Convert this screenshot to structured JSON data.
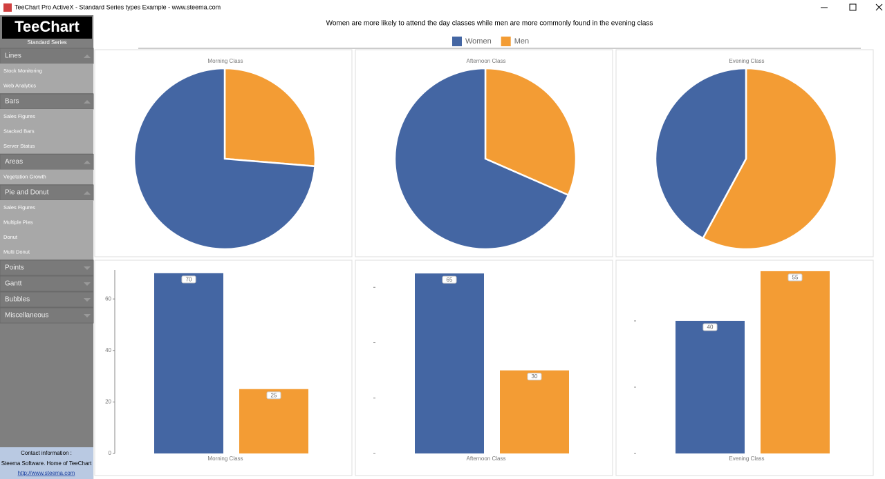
{
  "window": {
    "title": "TeeChart Pro ActiveX - Standard Series types Example - www.steema.com"
  },
  "sidebar": {
    "logo": "TeeChart",
    "subtitle": "Standard Series",
    "sections": [
      {
        "name": "Lines",
        "items": [
          "Stock Monitoring",
          "Web Analytics"
        ]
      },
      {
        "name": "Bars",
        "items": [
          "Sales Figures",
          "Stacked Bars",
          "Server Status"
        ]
      },
      {
        "name": "Areas",
        "items": [
          "Vegetation Growth"
        ]
      },
      {
        "name": "Pie and Donut",
        "items": [
          "Sales Figures",
          "Multiple Pies",
          "Donut",
          "Multi Donut"
        ]
      },
      {
        "name": "Points"
      },
      {
        "name": "Gantt"
      },
      {
        "name": "Bubbles"
      },
      {
        "name": "Miscellaneous"
      }
    ],
    "contact": {
      "heading": "Contact information :",
      "text": "Steema Software. Home of TeeChart",
      "link": "http://www.steema.com"
    }
  },
  "header": {
    "title": "Women are more likely to attend the day classes while men are more commonly found in the evening class",
    "legend": [
      {
        "name": "Women",
        "color": "#4466a3"
      },
      {
        "name": "Men",
        "color": "#f39c34"
      }
    ]
  },
  "chart_data": [
    {
      "type": "pie",
      "title": "Morning Class",
      "categories": [
        "Women",
        "Men"
      ],
      "values": [
        70,
        25
      ],
      "colors": [
        "#4466a3",
        "#f39c34"
      ]
    },
    {
      "type": "pie",
      "title": "Afternoon Class",
      "categories": [
        "Women",
        "Men"
      ],
      "values": [
        65,
        30
      ],
      "colors": [
        "#4466a3",
        "#f39c34"
      ]
    },
    {
      "type": "pie",
      "title": "Evening Class",
      "categories": [
        "Women",
        "Men"
      ],
      "values": [
        40,
        55
      ],
      "colors": [
        "#4466a3",
        "#f39c34"
      ]
    },
    {
      "type": "bar",
      "categories": [
        "Morning Class"
      ],
      "series": [
        {
          "name": "Women",
          "color": "#4466a3",
          "values": [
            70
          ]
        },
        {
          "name": "Men",
          "color": "#f39c34",
          "values": [
            25
          ]
        }
      ],
      "ylim": [
        0,
        71.3
      ],
      "yticks": [
        0,
        20,
        40,
        60
      ],
      "ytick_labels": true,
      "axis_line": true
    },
    {
      "type": "bar",
      "categories": [
        "Afternoon Class"
      ],
      "series": [
        {
          "name": "Women",
          "color": "#4466a3",
          "values": [
            65
          ]
        },
        {
          "name": "Men",
          "color": "#f39c34",
          "values": [
            30
          ]
        }
      ],
      "ylim": [
        0,
        66.3
      ],
      "yticks": [
        0,
        20,
        40,
        60
      ],
      "ytick_labels": false,
      "axis_line": false
    },
    {
      "type": "bar",
      "categories": [
        "Evening Class"
      ],
      "series": [
        {
          "name": "Women",
          "color": "#4466a3",
          "values": [
            40
          ]
        },
        {
          "name": "Men",
          "color": "#f39c34",
          "values": [
            55
          ]
        }
      ],
      "ylim": [
        0,
        55.4
      ],
      "yticks": [
        0,
        20,
        40
      ],
      "ytick_labels": false,
      "axis_line": false
    }
  ]
}
